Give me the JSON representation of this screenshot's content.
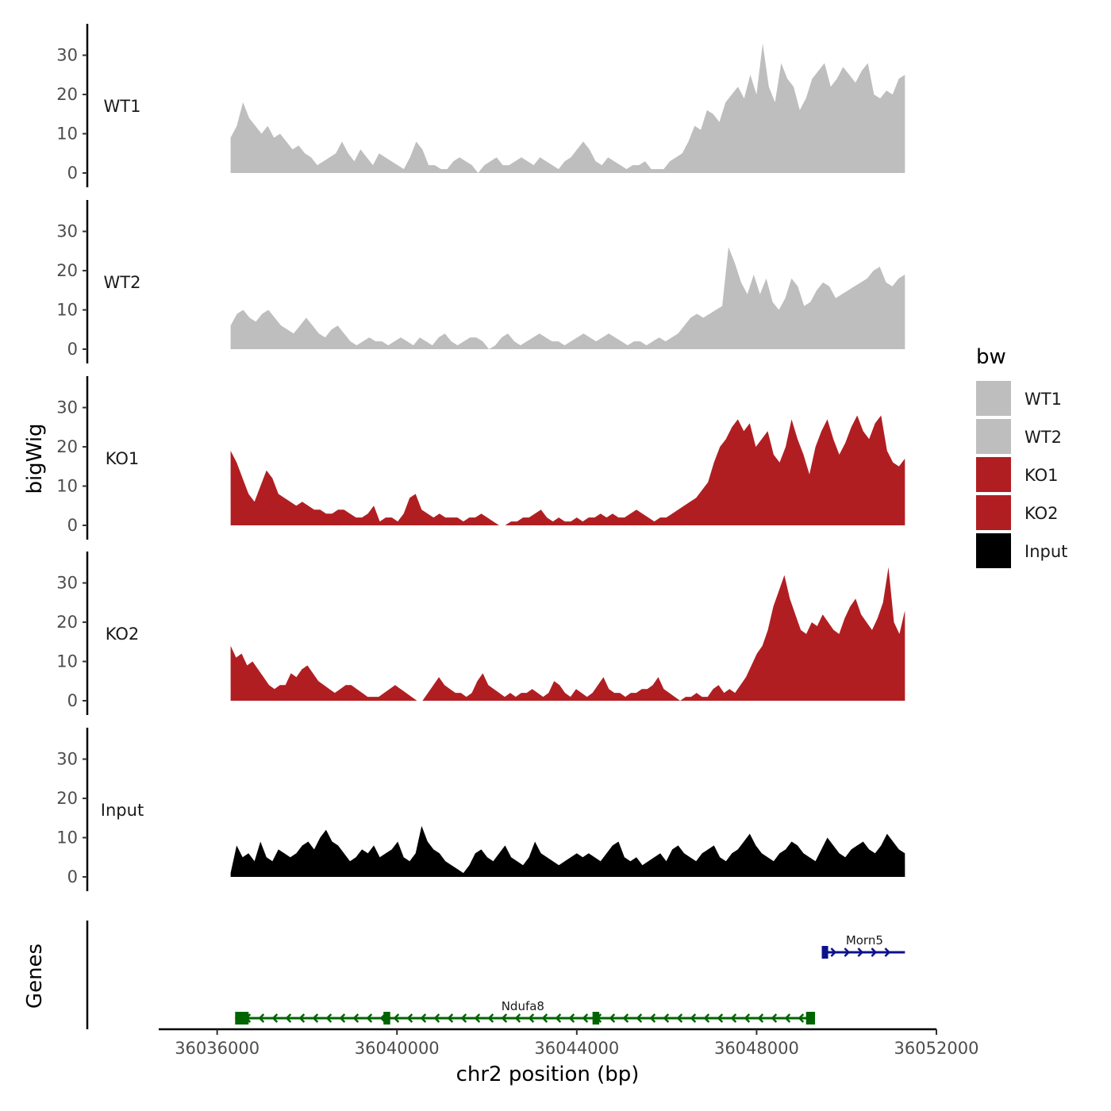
{
  "chart_data": {
    "type": "area",
    "y_axis_title": "bigWig",
    "genes_axis_title": "Genes",
    "x_axis_title": "chr2 position (bp)",
    "x_range": [
      36034700,
      36052000
    ],
    "x_ticks": [
      36036000,
      36040000,
      36044000,
      36048000,
      36052000
    ],
    "x_tick_labels": [
      "36036000",
      "36040000",
      "36044000",
      "36048000",
      "36052000"
    ],
    "y_range": [
      0,
      38
    ],
    "y_ticks": [
      0,
      10,
      20,
      30
    ],
    "y_tick_labels": [
      "0",
      "10",
      "20",
      "30"
    ],
    "legend": {
      "title": "bw",
      "items": [
        {
          "label": "WT1",
          "color": "#bebebe"
        },
        {
          "label": "WT2",
          "color": "#bebebe"
        },
        {
          "label": "KO1",
          "color": "#b11e22"
        },
        {
          "label": "KO2",
          "color": "#b11e22"
        },
        {
          "label": "Input",
          "color": "#000000"
        }
      ]
    },
    "signal_range": [
      36036300,
      36051300
    ],
    "tracks": [
      {
        "name": "WT1",
        "color": "#bebebe",
        "values": [
          9,
          12,
          18,
          14,
          12,
          10,
          12,
          9,
          10,
          8,
          6,
          7,
          5,
          4,
          2,
          3,
          4,
          5,
          8,
          5,
          3,
          6,
          4,
          2,
          5,
          4,
          3,
          2,
          1,
          4,
          8,
          6,
          2,
          2,
          1,
          1,
          3,
          4,
          3,
          2,
          0,
          2,
          3,
          4,
          2,
          2,
          3,
          4,
          3,
          2,
          4,
          3,
          2,
          1,
          3,
          4,
          6,
          8,
          6,
          3,
          2,
          4,
          3,
          2,
          1,
          2,
          2,
          3,
          1,
          1,
          1,
          3,
          4,
          5,
          8,
          12,
          11,
          16,
          15,
          13,
          18,
          20,
          22,
          19,
          25,
          20,
          33,
          22,
          18,
          28,
          24,
          22,
          16,
          19,
          24,
          26,
          28,
          22,
          24,
          27,
          25,
          23,
          26,
          28,
          20,
          19,
          21,
          20,
          24,
          25
        ]
      },
      {
        "name": "WT2",
        "color": "#bebebe",
        "values": [
          6,
          9,
          10,
          8,
          7,
          9,
          10,
          8,
          6,
          5,
          4,
          6,
          8,
          6,
          4,
          3,
          5,
          6,
          4,
          2,
          1,
          2,
          3,
          2,
          2,
          1,
          2,
          3,
          2,
          1,
          3,
          2,
          1,
          3,
          4,
          2,
          1,
          2,
          3,
          3,
          2,
          0,
          1,
          3,
          4,
          2,
          1,
          2,
          3,
          4,
          3,
          2,
          2,
          1,
          2,
          3,
          4,
          3,
          2,
          3,
          4,
          3,
          2,
          1,
          2,
          2,
          1,
          2,
          3,
          2,
          3,
          4,
          6,
          8,
          9,
          8,
          9,
          10,
          11,
          26,
          22,
          17,
          14,
          19,
          14,
          18,
          12,
          10,
          13,
          18,
          16,
          11,
          12,
          15,
          17,
          16,
          13,
          14,
          15,
          16,
          17,
          18,
          20,
          21,
          17,
          16,
          18,
          19
        ]
      },
      {
        "name": "KO1",
        "color": "#b11e22",
        "values": [
          19,
          16,
          12,
          8,
          6,
          10,
          14,
          12,
          8,
          7,
          6,
          5,
          6,
          5,
          4,
          4,
          3,
          3,
          4,
          4,
          3,
          2,
          2,
          3,
          5,
          1,
          2,
          2,
          1,
          3,
          7,
          8,
          4,
          3,
          2,
          3,
          2,
          2,
          2,
          1,
          2,
          2,
          3,
          2,
          1,
          0,
          0,
          1,
          1,
          2,
          2,
          3,
          4,
          2,
          1,
          2,
          1,
          1,
          2,
          1,
          2,
          2,
          3,
          2,
          3,
          2,
          2,
          3,
          4,
          3,
          2,
          1,
          2,
          2,
          3,
          4,
          5,
          6,
          7,
          9,
          11,
          16,
          20,
          22,
          25,
          27,
          24,
          26,
          20,
          22,
          24,
          18,
          16,
          20,
          27,
          22,
          18,
          13,
          20,
          24,
          27,
          22,
          18,
          21,
          25,
          28,
          24,
          22,
          26,
          28,
          19,
          16,
          15,
          17
        ]
      },
      {
        "name": "KO2",
        "color": "#b11e22",
        "values": [
          14,
          11,
          12,
          9,
          10,
          8,
          6,
          4,
          3,
          4,
          4,
          7,
          6,
          8,
          9,
          7,
          5,
          4,
          3,
          2,
          3,
          4,
          4,
          3,
          2,
          1,
          1,
          1,
          2,
          3,
          4,
          3,
          2,
          1,
          0,
          0,
          2,
          4,
          6,
          4,
          3,
          2,
          2,
          1,
          2,
          5,
          7,
          4,
          3,
          2,
          1,
          2,
          1,
          2,
          2,
          3,
          2,
          1,
          2,
          5,
          4,
          2,
          1,
          3,
          2,
          1,
          2,
          4,
          6,
          3,
          2,
          2,
          1,
          2,
          2,
          3,
          3,
          4,
          6,
          3,
          2,
          1,
          0,
          1,
          1,
          2,
          1,
          1,
          3,
          4,
          2,
          3,
          2,
          4,
          6,
          9,
          12,
          14,
          18,
          24,
          28,
          32,
          26,
          22,
          18,
          17,
          20,
          19,
          22,
          20,
          18,
          17,
          21,
          24,
          26,
          22,
          20,
          18,
          21,
          25,
          34,
          20,
          17,
          23
        ]
      },
      {
        "name": "Input",
        "color": "#000000",
        "values": [
          1,
          8,
          5,
          6,
          4,
          9,
          5,
          4,
          7,
          6,
          5,
          6,
          8,
          9,
          7,
          10,
          12,
          9,
          8,
          6,
          4,
          5,
          7,
          6,
          8,
          5,
          6,
          7,
          9,
          5,
          4,
          6,
          13,
          9,
          7,
          6,
          4,
          3,
          2,
          1,
          3,
          6,
          7,
          5,
          4,
          6,
          8,
          5,
          4,
          3,
          5,
          9,
          6,
          5,
          4,
          3,
          4,
          5,
          6,
          5,
          6,
          5,
          4,
          6,
          8,
          9,
          5,
          4,
          5,
          3,
          4,
          5,
          6,
          4,
          7,
          8,
          6,
          5,
          4,
          6,
          7,
          8,
          5,
          4,
          6,
          7,
          9,
          11,
          8,
          6,
          5,
          4,
          6,
          7,
          9,
          8,
          6,
          5,
          4,
          7,
          10,
          8,
          6,
          5,
          7,
          8,
          9,
          7,
          6,
          8,
          11,
          9,
          7,
          6
        ]
      }
    ],
    "genes": [
      {
        "name": "Ndufa8",
        "strand": "-",
        "color": "#006400",
        "start": 36036400,
        "end": 36049200,
        "exons": [
          [
            36036400,
            36036700
          ],
          [
            36039700,
            36039850
          ],
          [
            36044350,
            36044500
          ],
          [
            36049100,
            36049300
          ]
        ]
      },
      {
        "name": "Morn5",
        "strand": "+",
        "color": "#0e128a",
        "start": 36049500,
        "end": 36051300,
        "exons": [
          [
            36049450,
            36049550
          ]
        ]
      }
    ]
  }
}
